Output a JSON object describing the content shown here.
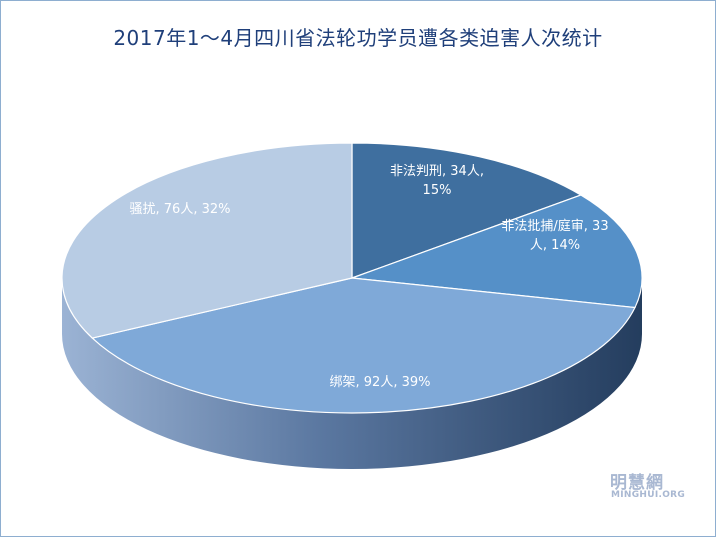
{
  "chart_data": {
    "type": "pie",
    "title": "2017年1～4月四川省法轮功学员遭各类迫害人次统计",
    "slices": [
      {
        "label": "非法判刑",
        "value": 34,
        "unit": "人",
        "percent": "15%",
        "label_lines": [
          "非法判刑, 34人,",
          "15%"
        ],
        "color": "#3f6f9f",
        "side_color": "#2c4e72"
      },
      {
        "label": "非法批捕/庭审",
        "value": 33,
        "unit": "人",
        "percent": "14%",
        "label_lines": [
          "非法批捕/庭审, 33",
          "人, 14%"
        ],
        "color": "#5590c8",
        "side_color": "#3a6590"
      },
      {
        "label": "绑架",
        "value": 92,
        "unit": "人",
        "percent": "39%",
        "label_lines": [
          "绑架, 92人, 39%"
        ],
        "color": "#7fa9d8",
        "side_color": "#5f82ad"
      },
      {
        "label": "骚扰",
        "value": 76,
        "unit": "人",
        "percent": "32%",
        "label_lines": [
          "骚扰, 76人, 32%"
        ],
        "color": "#b8cce4",
        "side_color": "#8ea3c0"
      }
    ],
    "start": "12 o'clock, clockwise"
  },
  "watermark": {
    "cn": "明慧網",
    "en": "MINGHUI.ORG"
  }
}
